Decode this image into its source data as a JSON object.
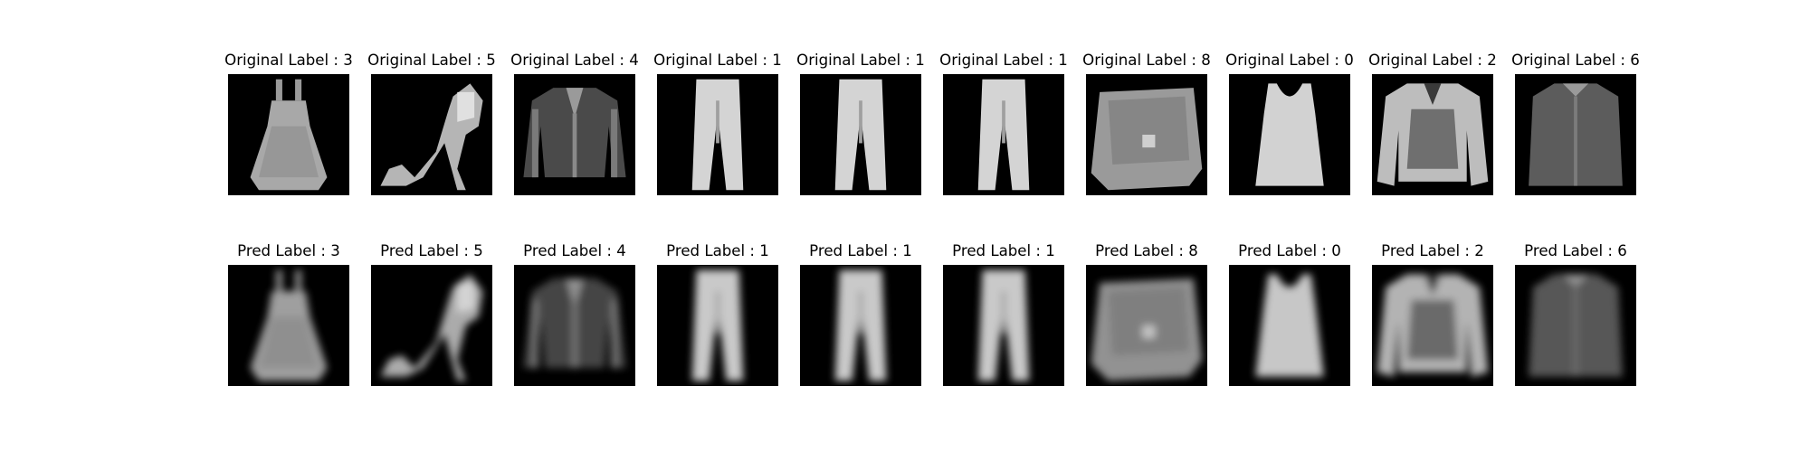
{
  "figure": {
    "rows": [
      {
        "row": "original",
        "panels": [
          {
            "label": "Original Label : 3",
            "item_icon": "dress-icon"
          },
          {
            "label": "Original Label : 5",
            "item_icon": "sandal-icon"
          },
          {
            "label": "Original Label : 4",
            "item_icon": "coat-icon"
          },
          {
            "label": "Original Label : 1",
            "item_icon": "trouser-icon"
          },
          {
            "label": "Original Label : 1",
            "item_icon": "trouser-icon"
          },
          {
            "label": "Original Label : 1",
            "item_icon": "trouser-icon"
          },
          {
            "label": "Original Label : 8",
            "item_icon": "bag-icon"
          },
          {
            "label": "Original Label : 0",
            "item_icon": "tshirt-top-icon"
          },
          {
            "label": "Original Label : 2",
            "item_icon": "pullover-icon"
          },
          {
            "label": "Original Label : 6",
            "item_icon": "shirt-icon"
          }
        ]
      },
      {
        "row": "predicted",
        "panels": [
          {
            "label": "Pred Label : 3",
            "item_icon": "dress-icon"
          },
          {
            "label": "Pred Label : 5",
            "item_icon": "sandal-icon"
          },
          {
            "label": "Pred Label : 4",
            "item_icon": "coat-icon"
          },
          {
            "label": "Pred Label : 1",
            "item_icon": "trouser-icon"
          },
          {
            "label": "Pred Label : 1",
            "item_icon": "trouser-icon"
          },
          {
            "label": "Pred Label : 1",
            "item_icon": "trouser-icon"
          },
          {
            "label": "Pred Label : 8",
            "item_icon": "bag-icon"
          },
          {
            "label": "Pred Label : 0",
            "item_icon": "tshirt-top-icon"
          },
          {
            "label": "Pred Label : 2",
            "item_icon": "pullover-icon"
          },
          {
            "label": "Pred Label : 6",
            "item_icon": "shirt-icon"
          }
        ]
      }
    ],
    "colors": {
      "background": "#ffffff",
      "thumb_background": "#000000",
      "item_gray": "#c8c8c8"
    }
  }
}
